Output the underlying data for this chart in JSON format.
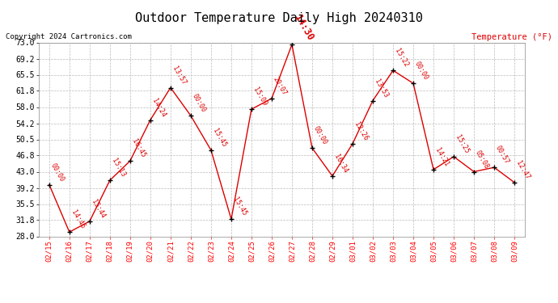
{
  "title": "Outdoor Temperature Daily High 20240310",
  "ylabel": "Temperature (°F)",
  "copyright": "Copyright 2024 Cartronics.com",
  "dates": [
    "02/15",
    "02/16",
    "02/17",
    "02/18",
    "02/19",
    "02/20",
    "02/21",
    "02/22",
    "02/23",
    "02/24",
    "02/25",
    "02/26",
    "02/27",
    "02/28",
    "02/29",
    "03/01",
    "03/02",
    "03/03",
    "03/04",
    "03/05",
    "03/06",
    "03/07",
    "03/08",
    "03/09"
  ],
  "values": [
    40.0,
    29.0,
    31.5,
    41.0,
    45.5,
    55.0,
    62.5,
    56.0,
    48.0,
    32.0,
    57.5,
    60.0,
    72.5,
    48.5,
    42.0,
    49.5,
    59.5,
    66.5,
    63.5,
    43.5,
    46.5,
    43.0,
    44.0,
    40.5
  ],
  "labels": [
    "00:00",
    "14:46",
    "15:44",
    "15:13",
    "16:45",
    "14:24",
    "13:57",
    "00:00",
    "15:45",
    "15:45",
    "15:09",
    "20:07",
    "14:30",
    "00:00",
    "16:34",
    "12:26",
    "13:53",
    "15:22",
    "00:00",
    "14:21",
    "15:25",
    "05:08",
    "00:57",
    "12:47"
  ],
  "highlight_label_idx": 12,
  "ylim": [
    28.0,
    73.0
  ],
  "yticks": [
    28.0,
    31.8,
    35.5,
    39.2,
    43.0,
    46.8,
    50.5,
    54.2,
    58.0,
    61.8,
    65.5,
    69.2,
    73.0
  ],
  "line_color": "#dd0000",
  "marker_color": "#000000",
  "label_color": "#dd0000",
  "title_color": "#000000",
  "copyright_color": "#000000",
  "ylabel_color": "#dd0000",
  "bg_color": "#ffffff",
  "grid_color": "#bbbbbb",
  "label_fontsize": 6.0,
  "highlight_fontsize": 8.5
}
